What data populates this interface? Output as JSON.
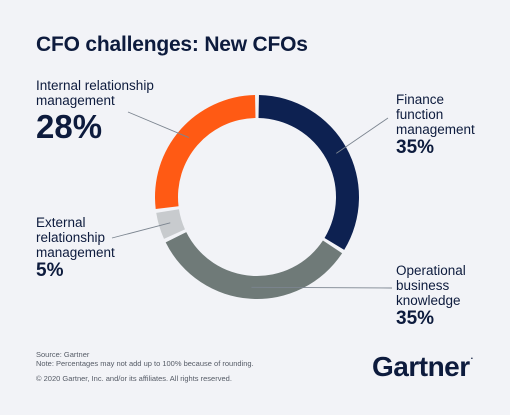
{
  "title": "CFO challenges: New CFOs",
  "chart_data": {
    "type": "pie",
    "donut": true,
    "title": "CFO challenges: New CFOs",
    "slices": [
      {
        "label": "Finance function management",
        "value": 35,
        "display": "35%",
        "color": "#0d2151"
      },
      {
        "label": "Operational business knowledge",
        "value": 35,
        "display": "35%",
        "color": "#6f7a78"
      },
      {
        "label": "External relationship management",
        "value": 5,
        "display": "5%",
        "color": "#c8cbce"
      },
      {
        "label": "Internal relationship management",
        "value": 28,
        "display": "28%",
        "color": "#ff5a14"
      }
    ]
  },
  "labels": {
    "internal": {
      "name_line1": "Internal relationship",
      "name_line2": "management",
      "pct": "28%"
    },
    "finance": {
      "name_line1": "Finance",
      "name_line2": "function",
      "name_line3": "management",
      "pct": "35%"
    },
    "external": {
      "name_line1": "External",
      "name_line2": "relationship",
      "name_line3": "management",
      "pct": "5%"
    },
    "operational": {
      "name_line1": "Operational",
      "name_line2": "business",
      "name_line3": "knowledge",
      "pct": "35%"
    }
  },
  "footer": {
    "source": "Source: Gartner",
    "note": "Note: Percentages may not add up to 100% because of rounding.",
    "copyright": "© 2020 Gartner, Inc. and/or its affiliates. All rights reserved."
  },
  "logo": {
    "text": "Gartner",
    "mark": "."
  }
}
